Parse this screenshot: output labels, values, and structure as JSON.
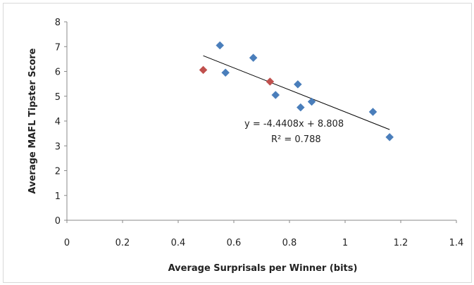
{
  "chart_data": {
    "type": "scatter",
    "title": "",
    "xlabel": "Average Surprisals per Winner (bits)",
    "ylabel": "Average MAFL Tipster Score",
    "xlim": [
      0,
      1.4
    ],
    "ylim": [
      0,
      8
    ],
    "xticks": [
      "0",
      "0.2",
      "0.4",
      "0.6",
      "0.8",
      "1",
      "1.2",
      "1.4"
    ],
    "yticks": [
      "0",
      "1",
      "2",
      "3",
      "4",
      "5",
      "6",
      "7",
      "8"
    ],
    "grid": false,
    "series": [
      {
        "color": "#4a7ebb",
        "points": [
          {
            "x": 0.55,
            "y": 7.05
          },
          {
            "x": 0.57,
            "y": 5.95
          },
          {
            "x": 0.67,
            "y": 6.55
          },
          {
            "x": 0.75,
            "y": 5.05
          },
          {
            "x": 0.83,
            "y": 5.48
          },
          {
            "x": 0.84,
            "y": 4.55
          },
          {
            "x": 0.88,
            "y": 4.78
          },
          {
            "x": 1.1,
            "y": 4.37
          },
          {
            "x": 1.16,
            "y": 3.35
          }
        ]
      },
      {
        "color": "#c0504d",
        "points": [
          {
            "x": 0.49,
            "y": 6.06
          },
          {
            "x": 0.73,
            "y": 5.59
          }
        ]
      }
    ],
    "trendline": {
      "slope": -4.4408,
      "intercept": 8.808,
      "x_range": [
        0.49,
        1.16
      ],
      "color": "#000000"
    },
    "annotations": {
      "equation": "y = -4.4408x + 8.808",
      "r_squared": "R² = 0.788"
    }
  }
}
